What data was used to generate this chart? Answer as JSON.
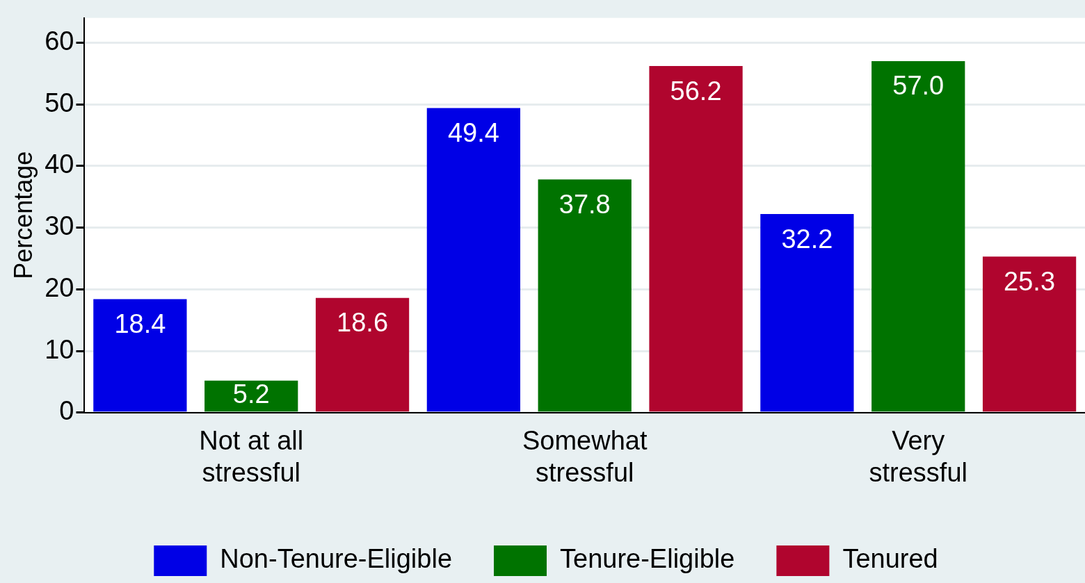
{
  "chart_data": {
    "type": "bar",
    "categories": [
      "Not at all\nstressful",
      "Somewhat\nstressful",
      "Very\nstressful"
    ],
    "series": [
      {
        "name": "Non-Tenure-Eligible",
        "color": "#0000e6",
        "values": [
          18.4,
          49.4,
          32.2
        ]
      },
      {
        "name": "Tenure-Eligible",
        "color": "#007300",
        "values": [
          5.2,
          37.8,
          57.0
        ]
      },
      {
        "name": "Tenured",
        "color": "#b0052e",
        "values": [
          18.6,
          56.2,
          25.3
        ]
      }
    ],
    "value_labels": [
      [
        "18.4",
        "49.4",
        "32.2"
      ],
      [
        "5.2",
        "37.8",
        "57.0"
      ],
      [
        "18.6",
        "56.2",
        "25.3"
      ]
    ],
    "ylabel": "Percentage",
    "ylim": [
      0,
      64
    ],
    "yticks": [
      0,
      10,
      20,
      30,
      40,
      50,
      60
    ],
    "grid": "y",
    "legend": "bottom"
  }
}
